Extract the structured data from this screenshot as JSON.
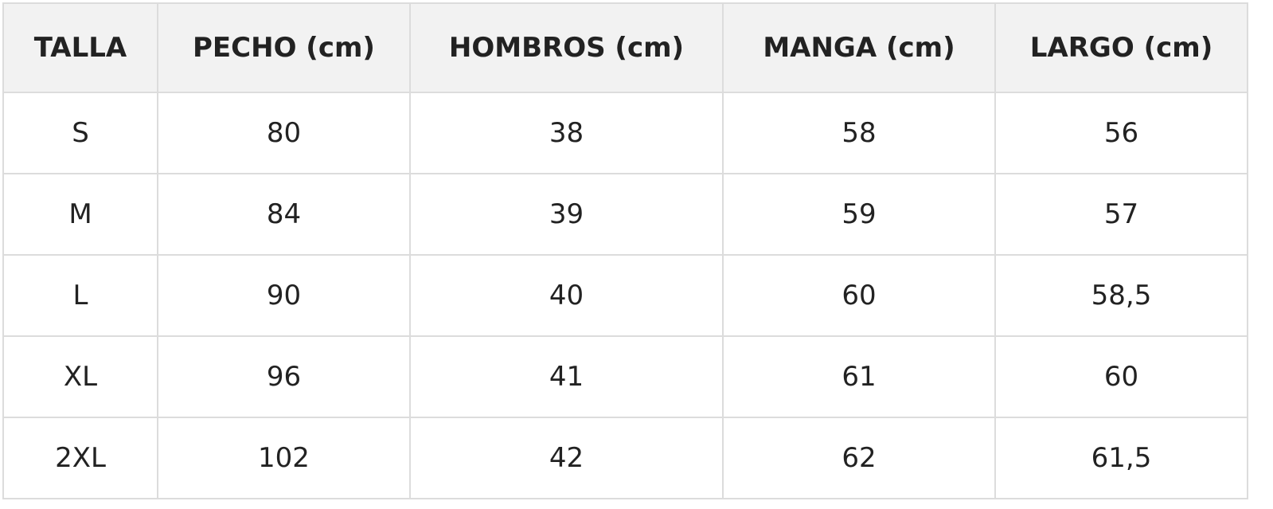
{
  "table": {
    "header": [
      "TALLA",
      "PECHO (cm)",
      "HOMBROS (cm)",
      "MANGA (cm)",
      "LARGO (cm)"
    ],
    "rows": [
      [
        "S",
        "80",
        "38",
        "58",
        "56"
      ],
      [
        "M",
        "84",
        "39",
        "59",
        "57"
      ],
      [
        "L",
        "90",
        "40",
        "60",
        "58,5"
      ],
      [
        "XL",
        "96",
        "41",
        "61",
        "60"
      ],
      [
        "2XL",
        "102",
        "42",
        "62",
        "61,5"
      ]
    ]
  }
}
